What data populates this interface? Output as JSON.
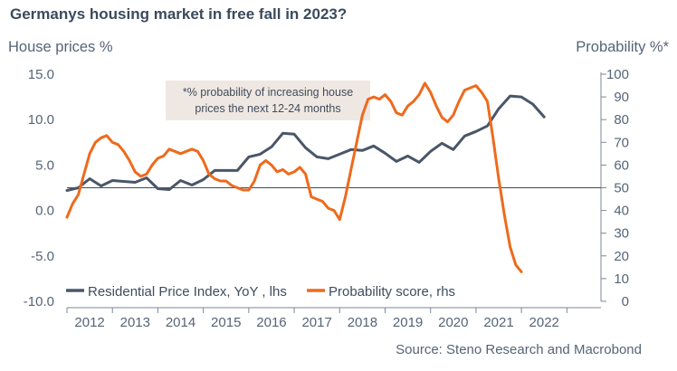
{
  "title": "Germanys housing market in free fall in 2023?",
  "source": "Source: Steno Research and Macrobond",
  "colors": {
    "price_line": "#4a5668",
    "prob_line": "#ee6a1c",
    "text": "#566476",
    "note_bg": "#efe8e2"
  },
  "chart_data": {
    "type": "line",
    "ylabel_left": "House prices %",
    "ylabel_right": "Probability %*",
    "ylim_left": [
      -10,
      15
    ],
    "ylim_right": [
      0,
      100
    ],
    "yticks_left": [
      "-10.0",
      "-5.0",
      "0.0",
      "5.0",
      "10.0",
      "15.0"
    ],
    "yticks_right": [
      "0",
      "10",
      "20",
      "30",
      "40",
      "50",
      "60",
      "70",
      "80",
      "90",
      "100"
    ],
    "x_labels": [
      "2012",
      "2013",
      "2014",
      "2015",
      "2016",
      "2017",
      "2018",
      "2019",
      "2020",
      "2021",
      "2022"
    ],
    "xlim": [
      2011.5,
      2023.25
    ],
    "reference_line": {
      "axis": "right",
      "value": 50
    },
    "grid": false,
    "legend_position": "bottom-left",
    "annotation": [
      "*% probability of increasing house",
      "prices the next 12-24 months"
    ],
    "series": [
      {
        "name": "Residential Price Index, YoY , lhs",
        "axis": "left",
        "x": [
          2011.5,
          2011.75,
          2012.0,
          2012.25,
          2012.5,
          2012.75,
          2013.0,
          2013.25,
          2013.5,
          2013.75,
          2014.0,
          2014.25,
          2014.5,
          2014.75,
          2015.0,
          2015.25,
          2015.5,
          2015.75,
          2016.0,
          2016.25,
          2016.5,
          2016.75,
          2017.0,
          2017.25,
          2017.5,
          2017.75,
          2018.0,
          2018.25,
          2018.5,
          2018.75,
          2019.0,
          2019.25,
          2019.5,
          2019.75,
          2020.0,
          2020.25,
          2020.5,
          2020.75,
          2021.0,
          2021.25,
          2021.5,
          2021.75,
          2022.0,
          2022.25,
          2022.5
        ],
        "values": [
          2.2,
          2.5,
          3.5,
          2.7,
          3.3,
          3.2,
          3.1,
          3.6,
          2.4,
          2.3,
          3.3,
          2.8,
          3.4,
          4.4,
          4.4,
          4.4,
          5.9,
          6.2,
          7.0,
          8.5,
          8.4,
          6.9,
          5.9,
          5.7,
          6.2,
          6.7,
          6.6,
          7.1,
          6.3,
          5.4,
          6.0,
          5.3,
          6.5,
          7.4,
          6.7,
          8.2,
          8.7,
          9.3,
          11.2,
          12.6,
          12.5,
          11.7,
          10.3,
          null,
          null
        ]
      },
      {
        "name": "Probability score, rhs",
        "axis": "right",
        "x": [
          2011.5,
          2011.625,
          2011.75,
          2011.875,
          2012.0,
          2012.125,
          2012.25,
          2012.375,
          2012.5,
          2012.625,
          2012.75,
          2012.875,
          2013.0,
          2013.125,
          2013.25,
          2013.375,
          2013.5,
          2013.625,
          2013.75,
          2013.875,
          2014.0,
          2014.125,
          2014.25,
          2014.375,
          2014.5,
          2014.625,
          2014.75,
          2014.875,
          2015.0,
          2015.125,
          2015.25,
          2015.375,
          2015.5,
          2015.625,
          2015.75,
          2015.875,
          2016.0,
          2016.125,
          2016.25,
          2016.375,
          2016.5,
          2016.625,
          2016.75,
          2016.875,
          2017.0,
          2017.125,
          2017.25,
          2017.375,
          2017.5,
          2017.625,
          2017.75,
          2017.875,
          2018.0,
          2018.125,
          2018.25,
          2018.375,
          2018.5,
          2018.625,
          2018.75,
          2018.875,
          2019.0,
          2019.125,
          2019.25,
          2019.375,
          2019.5,
          2019.625,
          2019.75,
          2019.875,
          2020.0,
          2020.125,
          2020.25,
          2020.375,
          2020.5,
          2020.625,
          2020.75,
          2020.875,
          2021.0,
          2021.125,
          2021.25,
          2021.375,
          2021.5,
          2021.625,
          2021.75,
          2021.875,
          2022.0,
          2022.125,
          2022.25,
          2022.375,
          2022.5
        ],
        "values": [
          37,
          43,
          47,
          56,
          65,
          70,
          72,
          73,
          70,
          69,
          66,
          62,
          57,
          55,
          56,
          60,
          63,
          64,
          67,
          66,
          65,
          66,
          67,
          66,
          62,
          56,
          54,
          53,
          53,
          51,
          50,
          49,
          49,
          53,
          60,
          62,
          60,
          57,
          58,
          56,
          57,
          59,
          56,
          46,
          45,
          44,
          41,
          40,
          36,
          46,
          58,
          70,
          82,
          89,
          90,
          89,
          91,
          88,
          83,
          82,
          86,
          88,
          91,
          96,
          92,
          86,
          81,
          79,
          82,
          88,
          93,
          94,
          95,
          92,
          88,
          72,
          54,
          38,
          24,
          16,
          13,
          null,
          null,
          null,
          null,
          null,
          null,
          null,
          null
        ]
      }
    ]
  }
}
